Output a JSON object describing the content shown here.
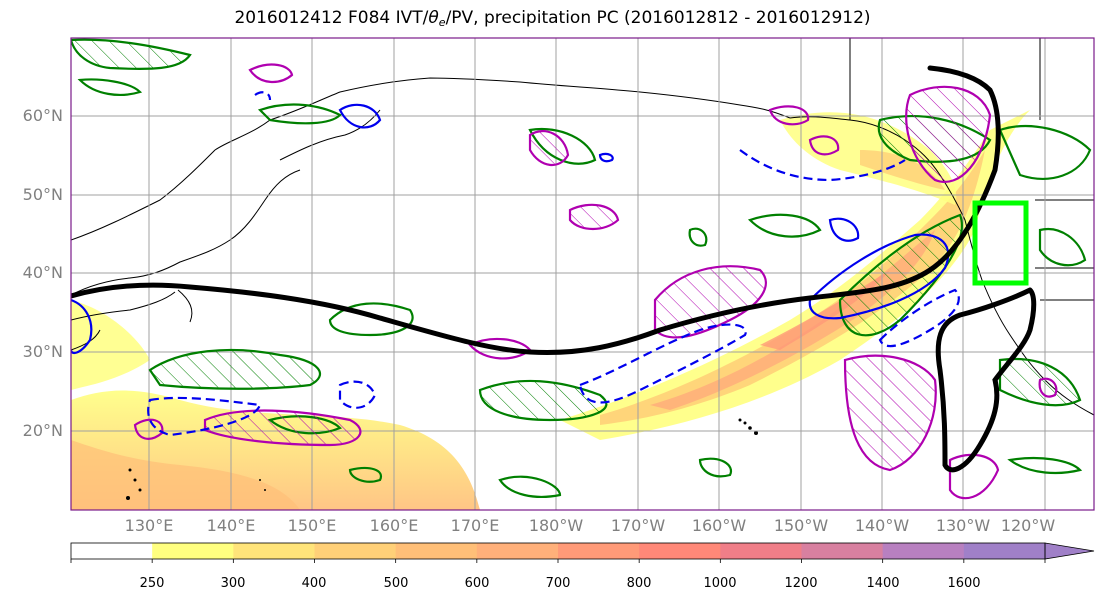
{
  "title": {
    "prefix": "2016012412 F084 IVT/",
    "theta": "θ",
    "theta_sub": "e",
    "suffix": "/PV, precipitation PC (2016012812 - 2016012912)"
  },
  "map": {
    "latitude_labels": [
      "60°N",
      "50°N",
      "40°N",
      "30°N",
      "20°N"
    ],
    "longitude_labels": [
      "130°E",
      "140°E",
      "150°E",
      "160°E",
      "170°E",
      "180°W",
      "170°W",
      "160°W",
      "150°W",
      "140°W",
      "130°W",
      "120°W"
    ],
    "colors": {
      "land_outline": "#000000",
      "gridline": "#a0a0a0",
      "jet_axis": "#000000",
      "green_contour": "#008000",
      "magenta_contour": "#b000b0",
      "blue_contour": "#0000ee",
      "target_box": "#00ff00"
    }
  },
  "colorbar": {
    "labels": [
      "250",
      "300",
      "400",
      "500",
      "600",
      "700",
      "800",
      "1000",
      "1200",
      "1400",
      "1600"
    ],
    "colors": [
      "#ffffff",
      "#ffff80",
      "#ffe47a",
      "#ffd078",
      "#ffbf78",
      "#ffb07a",
      "#ff9a78",
      "#ff8878",
      "#f07e88",
      "#d880a0",
      "#b880c0",
      "#a080c8"
    ]
  }
}
